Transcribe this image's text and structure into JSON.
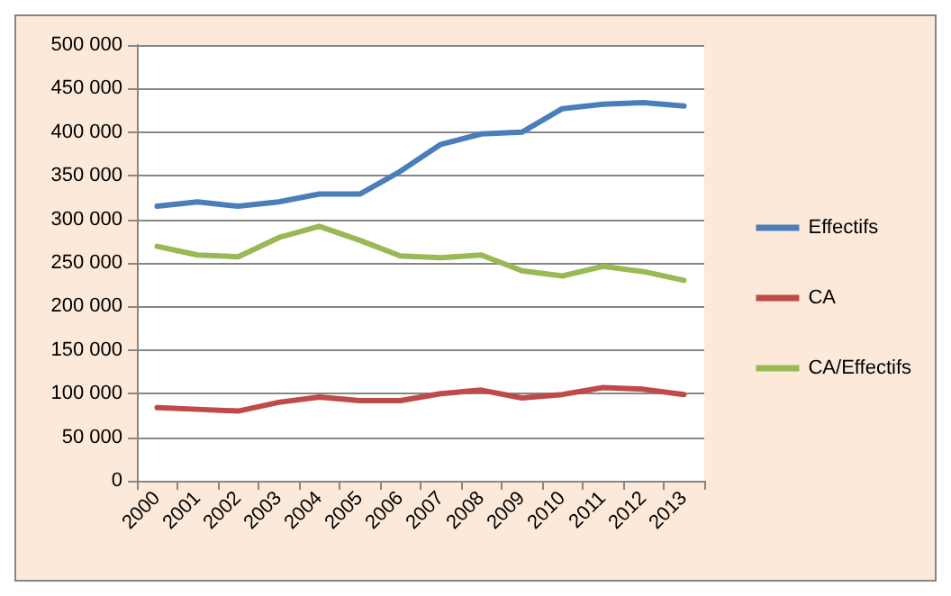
{
  "chart_data": {
    "type": "line",
    "categories": [
      "2000",
      "2001",
      "2002",
      "2003",
      "2004",
      "2005",
      "2006",
      "2007",
      "2008",
      "2009",
      "2010",
      "2011",
      "2012",
      "2013"
    ],
    "series": [
      {
        "name": "Effectifs",
        "color": "#4a7ebb",
        "values": [
          315000,
          320000,
          315000,
          320000,
          329000,
          329000,
          355000,
          386000,
          398000,
          400000,
          427000,
          432000,
          434000,
          430000
        ]
      },
      {
        "name": "CA",
        "color": "#be4b48",
        "values": [
          84000,
          82000,
          80000,
          90000,
          96000,
          92000,
          92000,
          100000,
          104000,
          95000,
          99000,
          107000,
          105000,
          99000
        ]
      },
      {
        "name": "CA/Effectifs",
        "color": "#98b954",
        "values": [
          269000,
          259000,
          257000,
          279000,
          292000,
          276000,
          258000,
          256000,
          259000,
          241000,
          235000,
          246000,
          240000,
          230000
        ]
      }
    ],
    "ylim": [
      0,
      500000
    ],
    "yticks": [
      {
        "value": 0,
        "label": "0"
      },
      {
        "value": 50000,
        "label": "50 000"
      },
      {
        "value": 100000,
        "label": "100 000"
      },
      {
        "value": 150000,
        "label": "150 000"
      },
      {
        "value": 200000,
        "label": "200 000"
      },
      {
        "value": 250000,
        "label": "250 000"
      },
      {
        "value": 300000,
        "label": "300 000"
      },
      {
        "value": 350000,
        "label": "350 000"
      },
      {
        "value": 400000,
        "label": "400 000"
      },
      {
        "value": 450000,
        "label": "450 000"
      },
      {
        "value": 500000,
        "label": "500 000"
      }
    ],
    "grid": "y",
    "legend": "right",
    "marker": "none",
    "line_style": "solid"
  }
}
